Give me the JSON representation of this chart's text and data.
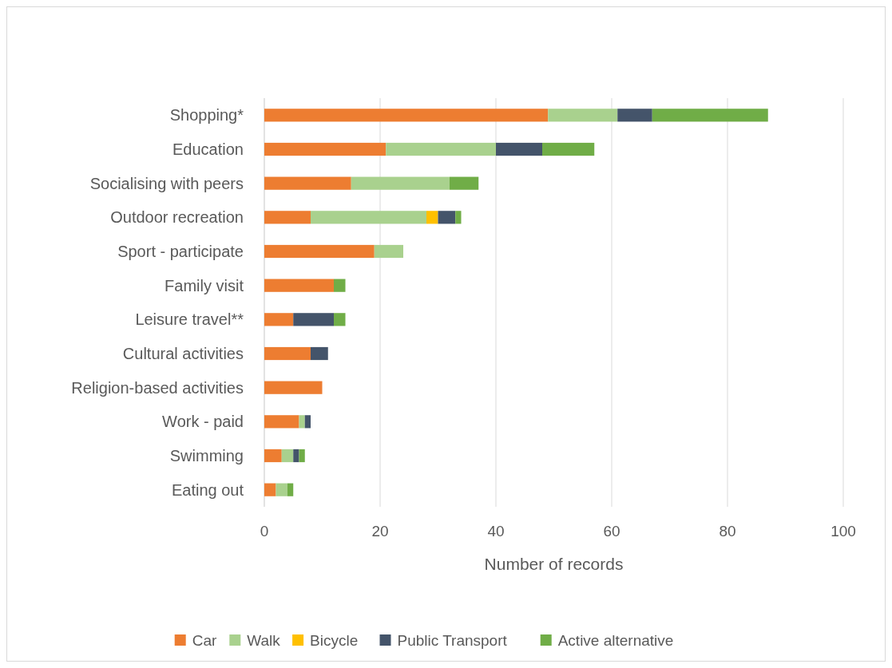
{
  "chart_data": {
    "type": "bar",
    "orientation": "horizontal",
    "stacked": true,
    "xlabel": "Number of records",
    "categories": [
      "Shopping*",
      "Education",
      "Socialising with peers",
      "Outdoor recreation",
      "Sport - participate",
      "Family visit",
      "Leisure travel**",
      "Cultural activities",
      "Religion-based activities",
      "Work - paid",
      "Swimming",
      "Eating out"
    ],
    "series": [
      {
        "name": "Car",
        "color": "#ed7d31",
        "values": [
          49,
          21,
          15,
          8,
          19,
          12,
          5,
          8,
          10,
          6,
          3,
          2
        ]
      },
      {
        "name": "Walk",
        "color": "#a9d18e",
        "values": [
          12,
          19,
          17,
          20,
          5,
          0,
          0,
          0,
          0,
          1,
          2,
          2
        ]
      },
      {
        "name": "Bicycle",
        "color": "#ffc000",
        "values": [
          0,
          0,
          0,
          2,
          0,
          0,
          0,
          0,
          0,
          0,
          0,
          0
        ]
      },
      {
        "name": "Public Transport",
        "color": "#44546a",
        "values": [
          6,
          8,
          0,
          3,
          0,
          0,
          7,
          3,
          0,
          1,
          1,
          0
        ]
      },
      {
        "name": "Active alternative",
        "color": "#70ad47",
        "values": [
          20,
          9,
          5,
          1,
          0,
          2,
          2,
          0,
          0,
          0,
          1,
          1
        ]
      }
    ],
    "xlim": [
      0,
      100
    ],
    "xticks": [
      0,
      20,
      40,
      60,
      80,
      100
    ],
    "grid": "x",
    "legend": "bottom"
  }
}
